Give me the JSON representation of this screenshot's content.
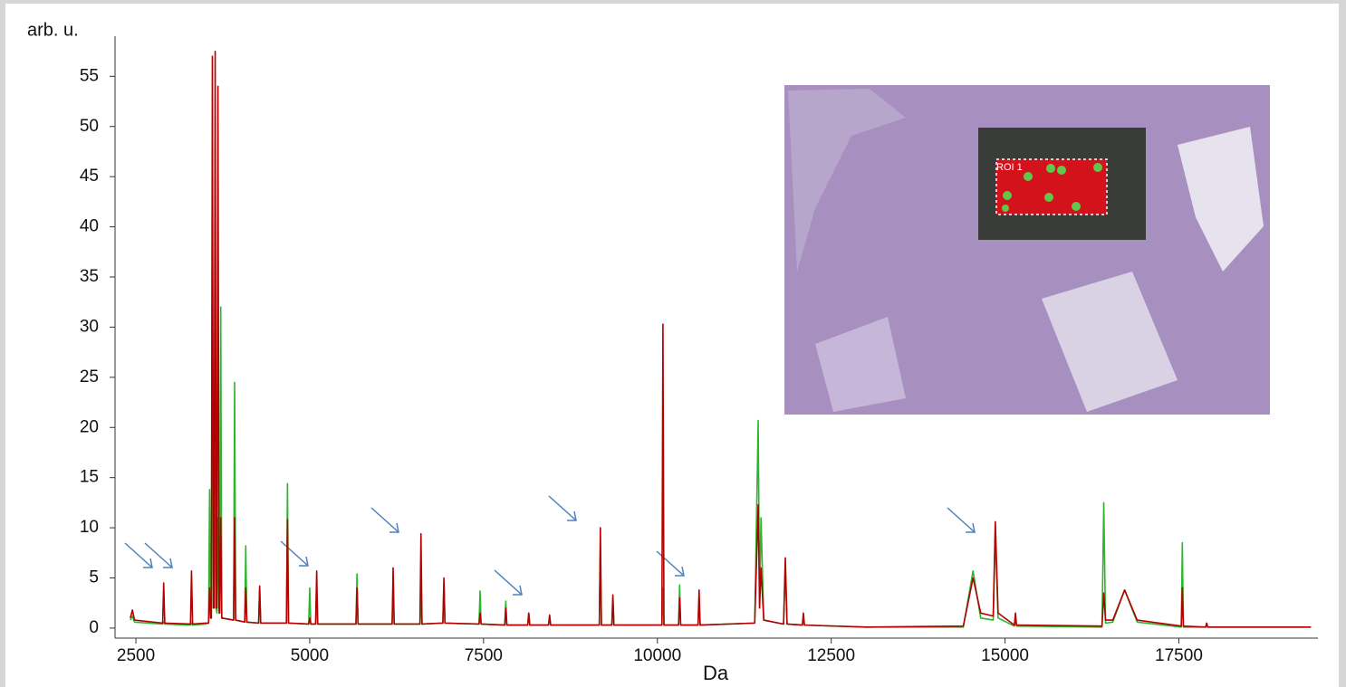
{
  "chart_data": {
    "type": "line",
    "ylabel": "arb. u.",
    "xlabel": "Da",
    "inset_label": "ROI 1",
    "xlim": [
      2200,
      19500
    ],
    "xticks": [
      2500,
      5000,
      7500,
      10000,
      12500,
      15000,
      17500
    ],
    "ylim": [
      -1,
      59
    ],
    "yticks": [
      0,
      5,
      10,
      15,
      20,
      25,
      30,
      35,
      40,
      45,
      50,
      55
    ],
    "x": [
      2420,
      2450,
      2480,
      2885,
      2900,
      2915,
      3285,
      3300,
      3315,
      3500,
      3545,
      3560,
      3575,
      3585,
      3600,
      3615,
      3625,
      3640,
      3655,
      3665,
      3680,
      3695,
      3705,
      3720,
      3735,
      3905,
      3920,
      3935,
      4065,
      4080,
      4095,
      4265,
      4280,
      4295,
      4665,
      4680,
      4695,
      4985,
      5000,
      5015,
      5085,
      5100,
      5115,
      5665,
      5680,
      5695,
      6185,
      6200,
      6215,
      6585,
      6600,
      6615,
      6915,
      6930,
      6945,
      7435,
      7450,
      7465,
      7805,
      7820,
      7835,
      8135,
      8150,
      8165,
      8435,
      8450,
      8465,
      9165,
      9180,
      9195,
      9345,
      9360,
      9375,
      10065,
      10080,
      10095,
      10305,
      10320,
      10335,
      10585,
      10600,
      10615,
      11400,
      11450,
      11470,
      11490,
      11530,
      11815,
      11840,
      11865,
      12085,
      12100,
      12115,
      13000,
      14400,
      14540,
      14650,
      14830,
      14860,
      14900,
      15135,
      15150,
      15165,
      16395,
      16420,
      16445,
      16550,
      16720,
      16900,
      17535,
      17550,
      17565,
      17885,
      17900,
      17915,
      19400
    ],
    "series": [
      {
        "color": "#2db52d",
        "values": [
          0.8,
          1.2,
          0.6,
          0.4,
          0.6,
          0.4,
          0.3,
          0.5,
          0.3,
          0.4,
          0.5,
          13.8,
          1,
          1,
          44,
          2,
          2,
          17,
          2,
          1.5,
          11,
          1.5,
          1.5,
          32,
          1,
          0.8,
          24.5,
          0.8,
          0.6,
          8.2,
          0.6,
          0.5,
          4,
          0.5,
          0.5,
          14.4,
          0.5,
          0.4,
          4,
          0.4,
          0.4,
          4,
          0.4,
          0.4,
          5.4,
          0.4,
          0.4,
          4,
          0.4,
          0.4,
          3,
          0.4,
          0.5,
          4.5,
          0.5,
          0.4,
          3.7,
          0.4,
          0.3,
          2.7,
          0.3,
          0.3,
          1.5,
          0.3,
          0.3,
          1.2,
          0.3,
          0.3,
          8,
          0.3,
          0.3,
          3,
          0.3,
          0.3,
          4,
          0.3,
          0.3,
          4.3,
          0.3,
          0.3,
          3,
          0.3,
          0.5,
          20.7,
          2,
          11,
          0.8,
          0.4,
          6.5,
          0.4,
          0.3,
          1.2,
          0.3,
          0.1,
          0.1,
          5.7,
          1.0,
          0.8,
          9.5,
          1,
          0.2,
          1.2,
          0.2,
          0.1,
          12.5,
          0.5,
          0.6,
          3.8,
          0.6,
          0.1,
          8.5,
          0.1,
          0.1,
          0.4,
          0.1,
          0.1
        ]
      },
      {
        "color": "#b30000",
        "values": [
          1.0,
          1.8,
          0.8,
          0.5,
          4.5,
          0.5,
          0.4,
          5.7,
          0.4,
          0.5,
          0.5,
          4,
          1,
          1,
          57,
          2,
          2,
          57.5,
          2,
          2,
          54,
          2,
          1.5,
          11,
          1,
          0.8,
          11,
          0.8,
          0.6,
          4,
          0.6,
          0.5,
          4.2,
          0.5,
          0.5,
          10.8,
          0.5,
          0.4,
          1,
          0.4,
          0.4,
          5.7,
          0.4,
          0.4,
          4,
          0.4,
          0.4,
          6,
          0.4,
          0.4,
          9.4,
          0.4,
          0.5,
          5,
          0.5,
          0.4,
          1.5,
          0.4,
          0.3,
          2,
          0.3,
          0.3,
          1.5,
          0.3,
          0.3,
          1.3,
          0.3,
          0.3,
          10,
          0.3,
          0.3,
          3.3,
          0.3,
          0.3,
          30.3,
          0.3,
          0.3,
          3,
          0.3,
          0.3,
          3.8,
          0.3,
          0.5,
          12.3,
          2,
          6,
          0.8,
          0.4,
          7,
          0.4,
          0.3,
          1.5,
          0.3,
          0.1,
          0.2,
          5,
          1.5,
          1.2,
          10.6,
          1.5,
          0.3,
          1.5,
          0.3,
          0.2,
          3.5,
          0.8,
          0.8,
          3.8,
          0.8,
          0.2,
          4,
          0.2,
          0.1,
          0.5,
          0.1,
          0.1
        ]
      }
    ]
  }
}
